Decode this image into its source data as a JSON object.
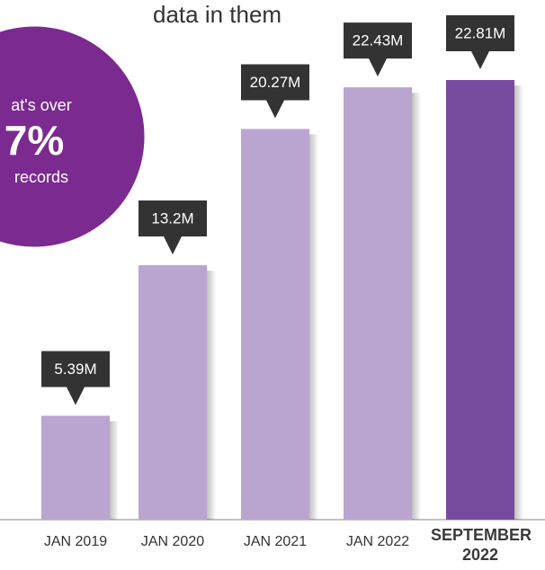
{
  "chart_data": {
    "type": "bar",
    "title": "data in them",
    "annotations": [
      "at's over",
      "7%",
      "records"
    ],
    "categories": [
      "JAN 2019",
      "JAN 2020",
      "JAN 2021",
      "JAN 2022",
      "SEPTEMBER 2022"
    ],
    "values": [
      5.39,
      13.2,
      20.27,
      22.43,
      22.81
    ],
    "value_labels": [
      "5.39M",
      "13.2M",
      "20.27M",
      "22.43M",
      "22.81M"
    ],
    "colors": [
      "#b9a5d0",
      "#b9a5d0",
      "#b9a5d0",
      "#b9a5d0",
      "#774ba0"
    ]
  }
}
